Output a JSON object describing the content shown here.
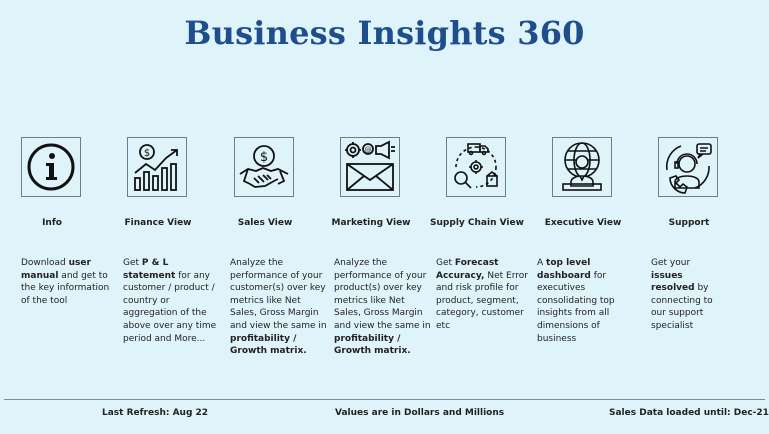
{
  "title": "Business Insights 360",
  "cards": [
    {
      "label": "Info",
      "icon": "info-icon",
      "desc": [
        {
          "t": "Download "
        },
        {
          "t": "user manual",
          "b": true
        },
        {
          "t": " and get to the key information of the tool"
        }
      ]
    },
    {
      "label": "Finance View",
      "icon": "finance-chart-icon",
      "desc": [
        {
          "t": "Get "
        },
        {
          "t": "P & L statement",
          "b": true
        },
        {
          "t": " for any customer / product / country or aggregation of the above over any time period and More..."
        }
      ]
    },
    {
      "label": "Sales View",
      "icon": "handshake-dollar-icon",
      "desc": [
        {
          "t": "Analyze the performance of your customer(s) over key metrics like Net Sales, Gross Margin and view the same in "
        },
        {
          "t": "profitability / Growth matrix.",
          "b": true
        }
      ]
    },
    {
      "label": "Marketing View",
      "icon": "marketing-envelope-icon",
      "desc": [
        {
          "t": "Analyze the performance of your product(s) over key metrics like Net Sales, Gross Margin and view the same in "
        },
        {
          "t": "profitability / Growth matrix.",
          "b": true
        }
      ]
    },
    {
      "label": "Supply Chain View",
      "icon": "supply-chain-icon",
      "desc": [
        {
          "t": "Get "
        },
        {
          "t": "Forecast Accuracy,",
          "b": true
        },
        {
          "t": " Net Error and risk profile for product, segment, category, customer etc"
        }
      ]
    },
    {
      "label": "Executive View",
      "icon": "executive-globe-icon",
      "desc": [
        {
          "t": "A "
        },
        {
          "t": "top level dashboard",
          "b": true
        },
        {
          "t": " for executives consolidating top insights from all dimensions of business"
        }
      ]
    },
    {
      "label": "Support",
      "icon": "support-agent-icon",
      "desc": [
        {
          "t": "Get your "
        },
        {
          "t": "issues resolved",
          "b": true
        },
        {
          "t": " by connecting to our support specialist"
        }
      ]
    }
  ],
  "footer": {
    "last_refresh": "Last Refresh: Aug 22",
    "units": "Values are in Dollars and Millions",
    "sales_loaded": "Sales Data loaded until: Dec-21"
  },
  "colors": {
    "background": "#dff3fb",
    "title": "#1f4e8c",
    "icon_border": "#6d7f86"
  }
}
